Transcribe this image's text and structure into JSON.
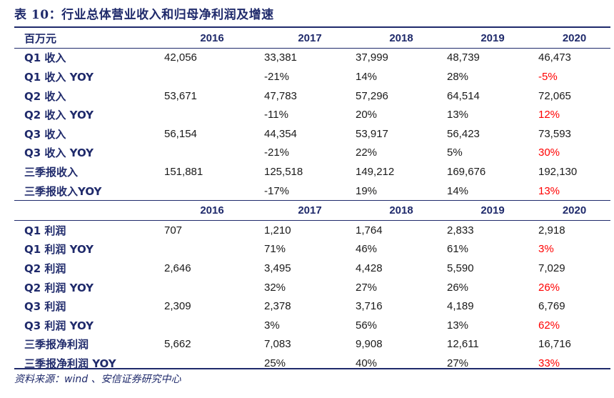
{
  "title": "表 10：行业总体营业收入和归母净利润及增速",
  "header_label": "百万元",
  "years": [
    "2016",
    "2017",
    "2018",
    "2019",
    "2020"
  ],
  "revenue_rows": [
    {
      "label": "Q1 收入",
      "values": [
        "42,056",
        "33,381",
        "37,999",
        "48,739",
        "46,473"
      ]
    },
    {
      "label": "Q1 收入 YOY",
      "values": [
        "",
        "-21%",
        "14%",
        "28%",
        "-5%"
      ]
    },
    {
      "label": "Q2 收入",
      "values": [
        "53,671",
        "47,783",
        "57,296",
        "64,514",
        "72,065"
      ]
    },
    {
      "label": "Q2 收入 YOY",
      "values": [
        "",
        "-11%",
        "20%",
        "13%",
        "12%"
      ]
    },
    {
      "label": "Q3 收入",
      "values": [
        "56,154",
        "44,354",
        "53,917",
        "56,423",
        "73,593"
      ]
    },
    {
      "label": "Q3  收入 YOY",
      "values": [
        "",
        "-21%",
        "22%",
        "5%",
        "30%"
      ]
    },
    {
      "label": "三季报收入",
      "values": [
        "151,881",
        "125,518",
        "149,212",
        "169,676",
        "192,130"
      ]
    },
    {
      "label": "三季报收入YOY",
      "values": [
        "",
        "-17%",
        "19%",
        "14%",
        "13%"
      ]
    }
  ],
  "profit_rows": [
    {
      "label": "Q1 利润",
      "values": [
        "707",
        "1,210",
        "1,764",
        "2,833",
        "2,918"
      ]
    },
    {
      "label": "Q1 利润 YOY",
      "values": [
        "",
        "71%",
        "46%",
        "61%",
        "3%"
      ]
    },
    {
      "label": "Q2 利润",
      "values": [
        "2,646",
        "3,495",
        "4,428",
        "5,590",
        "7,029"
      ]
    },
    {
      "label": "Q2 利润 YOY",
      "values": [
        "",
        "32%",
        "27%",
        "26%",
        "26%"
      ]
    },
    {
      "label": "Q3 利润",
      "values": [
        "2,309",
        "2,378",
        "3,716",
        "4,189",
        "6,769"
      ]
    },
    {
      "label": "Q3 利润 YOY",
      "values": [
        "",
        "3%",
        "56%",
        "13%",
        "62%"
      ]
    },
    {
      "label": "三季报净利润",
      "values": [
        "5,662",
        "7,083",
        "9,908",
        "12,611",
        "16,716"
      ]
    },
    {
      "label": "三季报净利润 YOY",
      "values": [
        "",
        "25%",
        "40%",
        "27%",
        "33%"
      ]
    }
  ],
  "highlight_color": "#ff0000",
  "source": "资料来源：wind 、安信证券研究中心"
}
